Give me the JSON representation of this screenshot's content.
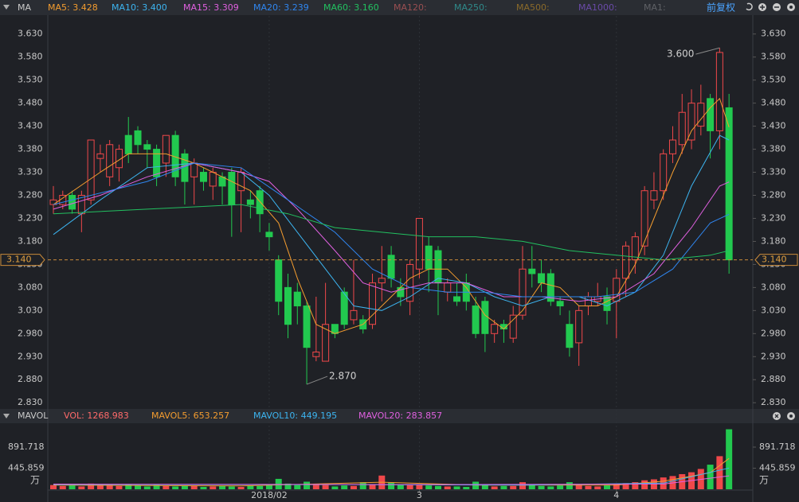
{
  "toolbar": {
    "indicator": "MA",
    "adjust": "前复权"
  },
  "chart_data": {
    "type": "candlestick",
    "ylim": [
      2.82,
      3.652
    ],
    "yticks": [
      {
        "value": 3.63,
        "label": "3.630"
      },
      {
        "value": 3.58,
        "label": "3.580"
      },
      {
        "value": 3.53,
        "label": "3.530"
      },
      {
        "value": 3.48,
        "label": "3.480"
      },
      {
        "value": 3.43,
        "label": "3.430"
      },
      {
        "value": 3.38,
        "label": "3.380"
      },
      {
        "value": 3.33,
        "label": "3.330"
      },
      {
        "value": 3.28,
        "label": "3.280"
      },
      {
        "value": 3.23,
        "label": "3.230"
      },
      {
        "value": 3.18,
        "label": "3.180"
      },
      {
        "value": 3.13,
        "label": "3.130"
      },
      {
        "value": 3.08,
        "label": "3.080"
      },
      {
        "value": 3.03,
        "label": "3.030"
      },
      {
        "value": 2.98,
        "label": "2.980"
      },
      {
        "value": 2.93,
        "label": "2.930"
      },
      {
        "value": 2.88,
        "label": "2.880"
      },
      {
        "value": 2.83,
        "label": "2.830"
      }
    ],
    "xticks": [
      {
        "value": 23,
        "label": "2018/02"
      },
      {
        "value": 39,
        "label": "3"
      },
      {
        "value": 60,
        "label": "4"
      }
    ],
    "colors": {
      "up": "#f0484a",
      "down": "#22c94f"
    },
    "candles": {
      "open": [
        3.26,
        3.26,
        3.28,
        3.24,
        3.27,
        3.36,
        3.32,
        3.34,
        3.41,
        3.42,
        3.39,
        3.38,
        3.35,
        3.41,
        3.37,
        3.32,
        3.33,
        3.3,
        3.32,
        3.33,
        3.29,
        3.27,
        3.29,
        3.2,
        3.14,
        3.08,
        3.07,
        3.04,
        2.93,
        2.92,
        3.0,
        3.07,
        3.01,
        3.01,
        3.0,
        3.09,
        3.15,
        3.08,
        3.05,
        3.12,
        3.17,
        3.16,
        3.07,
        3.06,
        3.09,
        3.04,
        3.05,
        2.98,
        3.0,
        2.97,
        3.02,
        3.12,
        3.11,
        3.11,
        3.05,
        3.0,
        2.96,
        3.04,
        3.05,
        3.06,
        3.05,
        3.1,
        3.14,
        3.17,
        3.27,
        3.29,
        3.37,
        3.39,
        3.4,
        3.43,
        3.49,
        3.42,
        3.47
      ],
      "high": [
        3.3,
        3.29,
        3.29,
        3.29,
        3.4,
        3.39,
        3.4,
        3.39,
        3.45,
        3.43,
        3.4,
        3.39,
        3.41,
        3.42,
        3.38,
        3.36,
        3.34,
        3.34,
        3.33,
        3.34,
        3.34,
        3.29,
        3.3,
        3.22,
        3.15,
        3.11,
        3.09,
        3.05,
        3.06,
        3.09,
        3.0,
        3.08,
        3.14,
        3.02,
        3.11,
        3.17,
        3.17,
        3.1,
        3.14,
        3.23,
        3.19,
        3.17,
        3.1,
        3.09,
        3.11,
        3.06,
        3.06,
        3.01,
        3.01,
        3.04,
        3.17,
        3.17,
        3.14,
        3.12,
        3.06,
        3.03,
        3.04,
        3.07,
        3.09,
        3.08,
        3.12,
        3.18,
        3.2,
        3.3,
        3.33,
        3.38,
        3.43,
        3.5,
        3.51,
        3.52,
        3.5,
        3.6,
        3.5
      ],
      "low": [
        3.24,
        3.25,
        3.24,
        3.2,
        3.26,
        3.33,
        3.3,
        3.31,
        3.35,
        3.37,
        3.34,
        3.3,
        3.32,
        3.3,
        3.26,
        3.26,
        3.29,
        3.27,
        3.26,
        3.19,
        3.2,
        3.23,
        3.2,
        3.16,
        3.02,
        2.97,
        3.0,
        2.87,
        2.92,
        2.92,
        2.97,
        2.99,
        3.0,
        2.98,
        2.99,
        3.05,
        3.08,
        3.04,
        3.02,
        3.1,
        3.07,
        3.02,
        3.05,
        3.04,
        3.03,
        2.97,
        2.94,
        2.96,
        2.96,
        2.96,
        3.01,
        3.08,
        3.07,
        3.04,
        3.02,
        2.93,
        2.91,
        3.02,
        3.04,
        3.0,
        2.97,
        3.06,
        3.11,
        3.15,
        3.25,
        3.27,
        3.35,
        3.37,
        3.38,
        3.41,
        3.36,
        3.38,
        3.11
      ],
      "close": [
        3.27,
        3.28,
        3.25,
        3.28,
        3.4,
        3.37,
        3.39,
        3.38,
        3.37,
        3.39,
        3.38,
        3.32,
        3.41,
        3.32,
        3.31,
        3.35,
        3.31,
        3.33,
        3.3,
        3.26,
        3.33,
        3.26,
        3.24,
        3.19,
        3.05,
        3.0,
        3.04,
        2.95,
        2.94,
        3.0,
        2.98,
        3.0,
        3.03,
        2.99,
        3.09,
        3.1,
        3.1,
        3.06,
        3.13,
        3.23,
        3.12,
        3.09,
        3.09,
        3.05,
        3.05,
        2.98,
        2.98,
        3.0,
        2.99,
        3.02,
        3.12,
        3.11,
        3.09,
        3.05,
        3.04,
        2.95,
        3.03,
        3.06,
        3.06,
        3.03,
        3.1,
        3.17,
        3.19,
        3.29,
        3.29,
        3.37,
        3.4,
        3.46,
        3.48,
        3.48,
        3.42,
        3.59,
        3.14
      ]
    },
    "series": [
      {
        "name": "MA5: 3.428",
        "color": "#f39c2f",
        "x": [
          0,
          5,
          8,
          12,
          15,
          18,
          21,
          24,
          26,
          28,
          30,
          33,
          36,
          38,
          40,
          42,
          44,
          46,
          48,
          50,
          52,
          54,
          56,
          58,
          60,
          62,
          64,
          66,
          68,
          70,
          71,
          72
        ],
        "values": [
          3.26,
          3.33,
          3.37,
          3.37,
          3.35,
          3.32,
          3.29,
          3.22,
          3.1,
          3.0,
          2.98,
          3.0,
          3.06,
          3.1,
          3.12,
          3.12,
          3.08,
          3.02,
          2.99,
          3.03,
          3.09,
          3.08,
          3.04,
          3.04,
          3.06,
          3.13,
          3.23,
          3.33,
          3.42,
          3.47,
          3.49,
          3.428
        ]
      },
      {
        "name": "MA10: 3.400",
        "color": "#3cb4f0",
        "x": [
          0,
          5,
          10,
          15,
          20,
          23,
          26,
          29,
          32,
          35,
          38,
          41,
          44,
          47,
          50,
          53,
          56,
          59,
          62,
          65,
          68,
          71,
          72
        ],
        "values": [
          3.195,
          3.27,
          3.34,
          3.35,
          3.33,
          3.28,
          3.2,
          3.12,
          3.04,
          3.03,
          3.06,
          3.1,
          3.09,
          3.06,
          3.04,
          3.06,
          3.06,
          3.04,
          3.07,
          3.15,
          3.3,
          3.41,
          3.4
        ]
      },
      {
        "name": "MA15: 3.309",
        "color": "#e060e0",
        "x": [
          0,
          5,
          10,
          15,
          20,
          23,
          26,
          30,
          33,
          36,
          40,
          44,
          48,
          52,
          56,
          60,
          64,
          68,
          71,
          72
        ],
        "values": [
          3.25,
          3.28,
          3.32,
          3.35,
          3.33,
          3.31,
          3.25,
          3.16,
          3.09,
          3.07,
          3.09,
          3.09,
          3.06,
          3.06,
          3.05,
          3.06,
          3.11,
          3.21,
          3.3,
          3.309
        ]
      },
      {
        "name": "MA20: 3.239",
        "color": "#2f86f0",
        "x": [
          0,
          10,
          15,
          20,
          25,
          30,
          34,
          38,
          42,
          46,
          50,
          54,
          58,
          62,
          66,
          70,
          72
        ],
        "values": [
          3.26,
          3.31,
          3.35,
          3.34,
          3.27,
          3.2,
          3.12,
          3.08,
          3.07,
          3.07,
          3.06,
          3.06,
          3.06,
          3.07,
          3.12,
          3.22,
          3.239
        ]
      },
      {
        "name": "MA60: 3.160",
        "color": "#22c060",
        "x": [
          0,
          10,
          20,
          25,
          30,
          35,
          40,
          45,
          50,
          55,
          60,
          65,
          70,
          72
        ],
        "values": [
          3.24,
          3.25,
          3.26,
          3.24,
          3.21,
          3.2,
          3.19,
          3.19,
          3.18,
          3.16,
          3.15,
          3.14,
          3.15,
          3.16
        ]
      }
    ],
    "inactive_series": [
      {
        "name": "MA120:",
        "color": "#9a4f52"
      },
      {
        "name": "MA250:",
        "color": "#2f8a8a"
      },
      {
        "name": "MA500:",
        "color": "#8a6a2a"
      },
      {
        "name": "MA1000:",
        "color": "#6a4aa8"
      },
      {
        "name": "MA1:",
        "color": "#5f6166"
      }
    ],
    "last_price": {
      "value": 3.14,
      "label": "3.140"
    },
    "annotations": [
      {
        "index": 71,
        "value": 3.6,
        "label": "3.600"
      },
      {
        "index": 27,
        "value": 2.87,
        "label": "2.870"
      }
    ],
    "volume": {
      "title": "MAVOL",
      "label": "VOL: 1268.983",
      "ylim": [
        0,
        1346
      ],
      "yticks": [
        891.718,
        445.859
      ],
      "unit": "万",
      "values": [
        90,
        70,
        80,
        60,
        120,
        80,
        90,
        70,
        110,
        80,
        60,
        90,
        70,
        60,
        80,
        70,
        50,
        60,
        70,
        60,
        50,
        80,
        70,
        90,
        220,
        120,
        90,
        160,
        110,
        90,
        60,
        80,
        70,
        150,
        110,
        290,
        140,
        100,
        90,
        110,
        80,
        70,
        60,
        60,
        50,
        160,
        100,
        60,
        70,
        70,
        150,
        90,
        70,
        60,
        80,
        150,
        100,
        70,
        60,
        90,
        110,
        130,
        150,
        190,
        210,
        250,
        280,
        320,
        360,
        430,
        520,
        700,
        1268.983
      ],
      "series": [
        {
          "name": "MAVOL5: 653.257",
          "color": "#f39c2f",
          "x": [
            0,
            20,
            35,
            45,
            60,
            65,
            70,
            72
          ],
          "values": [
            90,
            70,
            150,
            90,
            90,
            170,
            350,
            653.257
          ]
        },
        {
          "name": "MAVOL10: 449.195",
          "color": "#3cb4f0",
          "x": [
            0,
            30,
            50,
            65,
            72
          ],
          "values": [
            100,
            100,
            90,
            130,
            449.195
          ]
        },
        {
          "name": "MAVOL20: 283.857",
          "color": "#e060e0",
          "x": [
            0,
            40,
            65,
            72
          ],
          "values": [
            110,
            100,
            110,
            283.857
          ]
        }
      ]
    }
  }
}
